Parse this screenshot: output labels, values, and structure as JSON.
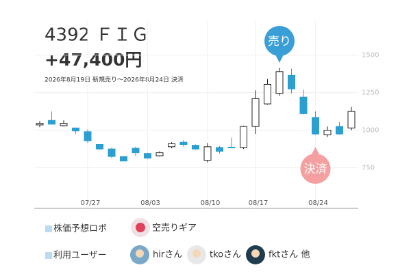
{
  "header": {
    "title": "4392 ＦＩＧ",
    "profit": "+47,400円",
    "period": "2026年8月19日 新規売り～2026年8月24日 決済"
  },
  "chart_data": {
    "type": "candlestick",
    "categories": [
      null,
      null,
      null,
      null,
      "07/27",
      null,
      null,
      null,
      null,
      "08/03",
      null,
      null,
      null,
      null,
      "08/10",
      null,
      null,
      null,
      "08/17",
      null,
      null,
      null,
      null,
      "08/24",
      null,
      null,
      null
    ],
    "open": [
      1035,
      1065,
      1030,
      1015,
      990,
      905,
      875,
      825,
      880,
      845,
      830,
      890,
      920,
      900,
      800,
      885,
      887,
      885,
      1025,
      1175,
      1245,
      1365,
      1220,
      1085,
      970,
      1025,
      1015
    ],
    "high": [
      1060,
      1125,
      1065,
      1015,
      1005,
      905,
      885,
      825,
      890,
      850,
      860,
      920,
      935,
      905,
      915,
      895,
      950,
      1030,
      1265,
      1340,
      1415,
      1410,
      1270,
      1125,
      1025,
      1055,
      1155
    ],
    "low": [
      1020,
      1040,
      1025,
      975,
      915,
      870,
      815,
      795,
      830,
      810,
      825,
      880,
      890,
      870,
      785,
      845,
      880,
      875,
      975,
      1170,
      1230,
      1245,
      1105,
      970,
      955,
      970,
      1000
    ],
    "close": [
      1045,
      1040,
      1045,
      995,
      930,
      875,
      825,
      795,
      850,
      815,
      850,
      910,
      905,
      875,
      890,
      860,
      885,
      1025,
      1210,
      1305,
      1390,
      1275,
      1110,
      975,
      1000,
      975,
      1125
    ],
    "up_color": "#ffffff",
    "down_color": "#2a9fd0",
    "ylim": [
      480,
      1730
    ],
    "yticks": [
      750,
      1000,
      1250,
      1500
    ],
    "grid": true,
    "annotations": [
      "売り",
      "決済"
    ]
  },
  "footer": {
    "robot_label": "株価予想ロボ",
    "robot_name": "空売りギア",
    "users_label": "利用ユーザー",
    "users": [
      "hirさん",
      "tkoさん",
      "fktさん 他"
    ]
  }
}
